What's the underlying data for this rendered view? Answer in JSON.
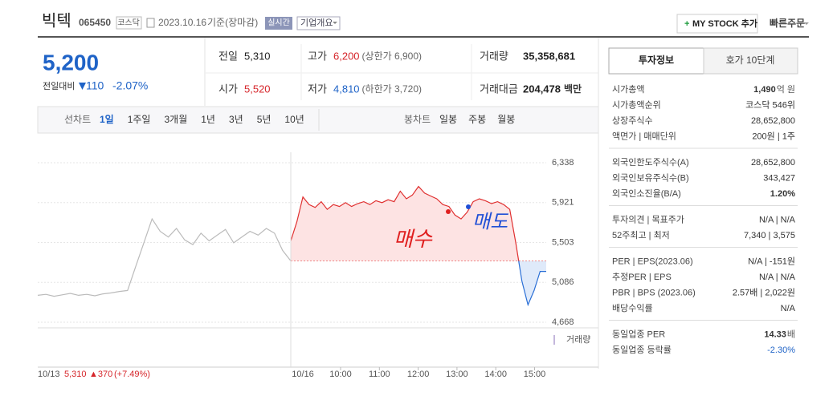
{
  "header": {
    "name": "빅텍",
    "code": "065450",
    "market": "코스닥",
    "date": "2023.10.16",
    "basis": "기준(장마감)",
    "realtime": "실시간",
    "overview": "기업개요",
    "mystock": "MY STOCK 추가",
    "quick_order": "빠른주문"
  },
  "quote": {
    "price": "5,200",
    "change_label": "전일대비",
    "change": "110",
    "change_pct": "-2.07%",
    "table": [
      [
        {
          "label": "전일",
          "value": "5,310"
        },
        {
          "label": "고가",
          "value": "6,200",
          "note": "(상한가 6,900)"
        },
        {
          "label": "거래량",
          "value": "35,358,681"
        }
      ],
      [
        {
          "label": "시가",
          "value": "5,520"
        },
        {
          "label": "저가",
          "value": "4,810",
          "note": "(하한가 3,720)"
        },
        {
          "label": "거래대금",
          "value": "204,478",
          "unit": "백만"
        }
      ]
    ]
  },
  "chart_tabs": {
    "line_label": "선차트",
    "line": [
      "1일",
      "1주일",
      "3개월",
      "1년",
      "3년",
      "5년",
      "10년"
    ],
    "candle_label": "봉차트",
    "candle": [
      "일봉",
      "주봉",
      "월봉"
    ]
  },
  "chart_data": {
    "type": "line",
    "ylim": [
      4668,
      6338
    ],
    "yticks": [
      {
        "value": 6338,
        "label": "6,338"
      },
      {
        "value": 5921,
        "label": "5,921"
      },
      {
        "value": 5503,
        "label": "5,503"
      },
      {
        "value": 5086,
        "label": "5,086"
      },
      {
        "value": 4668,
        "label": "4,668"
      }
    ],
    "baseline": 5310,
    "series": [
      {
        "name": "10/13",
        "color": "#bbbbbb",
        "values": [
          4950,
          4960,
          4940,
          4955,
          4970,
          4950,
          4960,
          4945,
          4965,
          4975,
          4990,
          5000,
          5250,
          5500,
          5750,
          5620,
          5560,
          5650,
          5530,
          5480,
          5600,
          5520,
          5580,
          5640,
          5500,
          5560,
          5620,
          5580,
          5650,
          5600,
          5420,
          5310
        ]
      },
      {
        "name": "10/16",
        "color": "#e03030",
        "color_below": "#2a6fd6",
        "values": [
          5520,
          5720,
          5980,
          5900,
          5870,
          5930,
          5850,
          5900,
          5880,
          5920,
          5880,
          5910,
          5930,
          5900,
          5940,
          5920,
          5950,
          5930,
          6040,
          5960,
          6000,
          6090,
          6020,
          5990,
          5960,
          5900,
          5880,
          5790,
          5750,
          5820,
          5930,
          5960,
          5940,
          5910,
          5930,
          5900,
          5850,
          5500,
          5100,
          4850,
          5000,
          5200,
          5200
        ]
      }
    ],
    "time_labels": [
      "10:00",
      "11:00",
      "12:00",
      "13:00",
      "14:00",
      "15:00"
    ],
    "prev_info": {
      "close": "5,310",
      "change": "▲370",
      "pct": "(+7.49%)"
    },
    "volume_label": "거래량",
    "annotations": [
      "매수",
      "매도"
    ]
  },
  "invest": {
    "tabs": [
      "투자정보",
      "호가 10단계"
    ],
    "groups": [
      [
        {
          "label": "시가총액",
          "value": "1,490",
          "unit": "억 원"
        },
        {
          "label": "시가총액순위",
          "value": "코스닥 546위"
        },
        {
          "label": "상장주식수",
          "value": "28,652,800"
        },
        {
          "label": "액면가 | 매매단위",
          "value": "200원 | 1주"
        }
      ],
      [
        {
          "label": "외국인한도주식수(A)",
          "value": "28,652,800"
        },
        {
          "label": "외국인보유주식수(B)",
          "value": "343,427"
        },
        {
          "label": "외국인소진율(B/A)",
          "value": "1.20%"
        }
      ],
      [
        {
          "label": "투자의견 | 목표주가",
          "value": "N/A | N/A"
        },
        {
          "label": "52주최고 | 최저",
          "value": "7,340 | 3,575"
        }
      ],
      [
        {
          "label": "PER | EPS(2023.06)",
          "value": "N/A | -151원"
        },
        {
          "label": "추정PER | EPS",
          "value": "N/A | N/A"
        },
        {
          "label": "PBR | BPS (2023.06)",
          "value": "2.57배 | 2,022원"
        },
        {
          "label": "배당수익률",
          "value": "N/A"
        }
      ],
      [
        {
          "label": "동일업종 PER",
          "value": "14.33",
          "unit": "배"
        },
        {
          "label": "동일업종 등락률",
          "value": "-2.30%"
        }
      ]
    ]
  }
}
